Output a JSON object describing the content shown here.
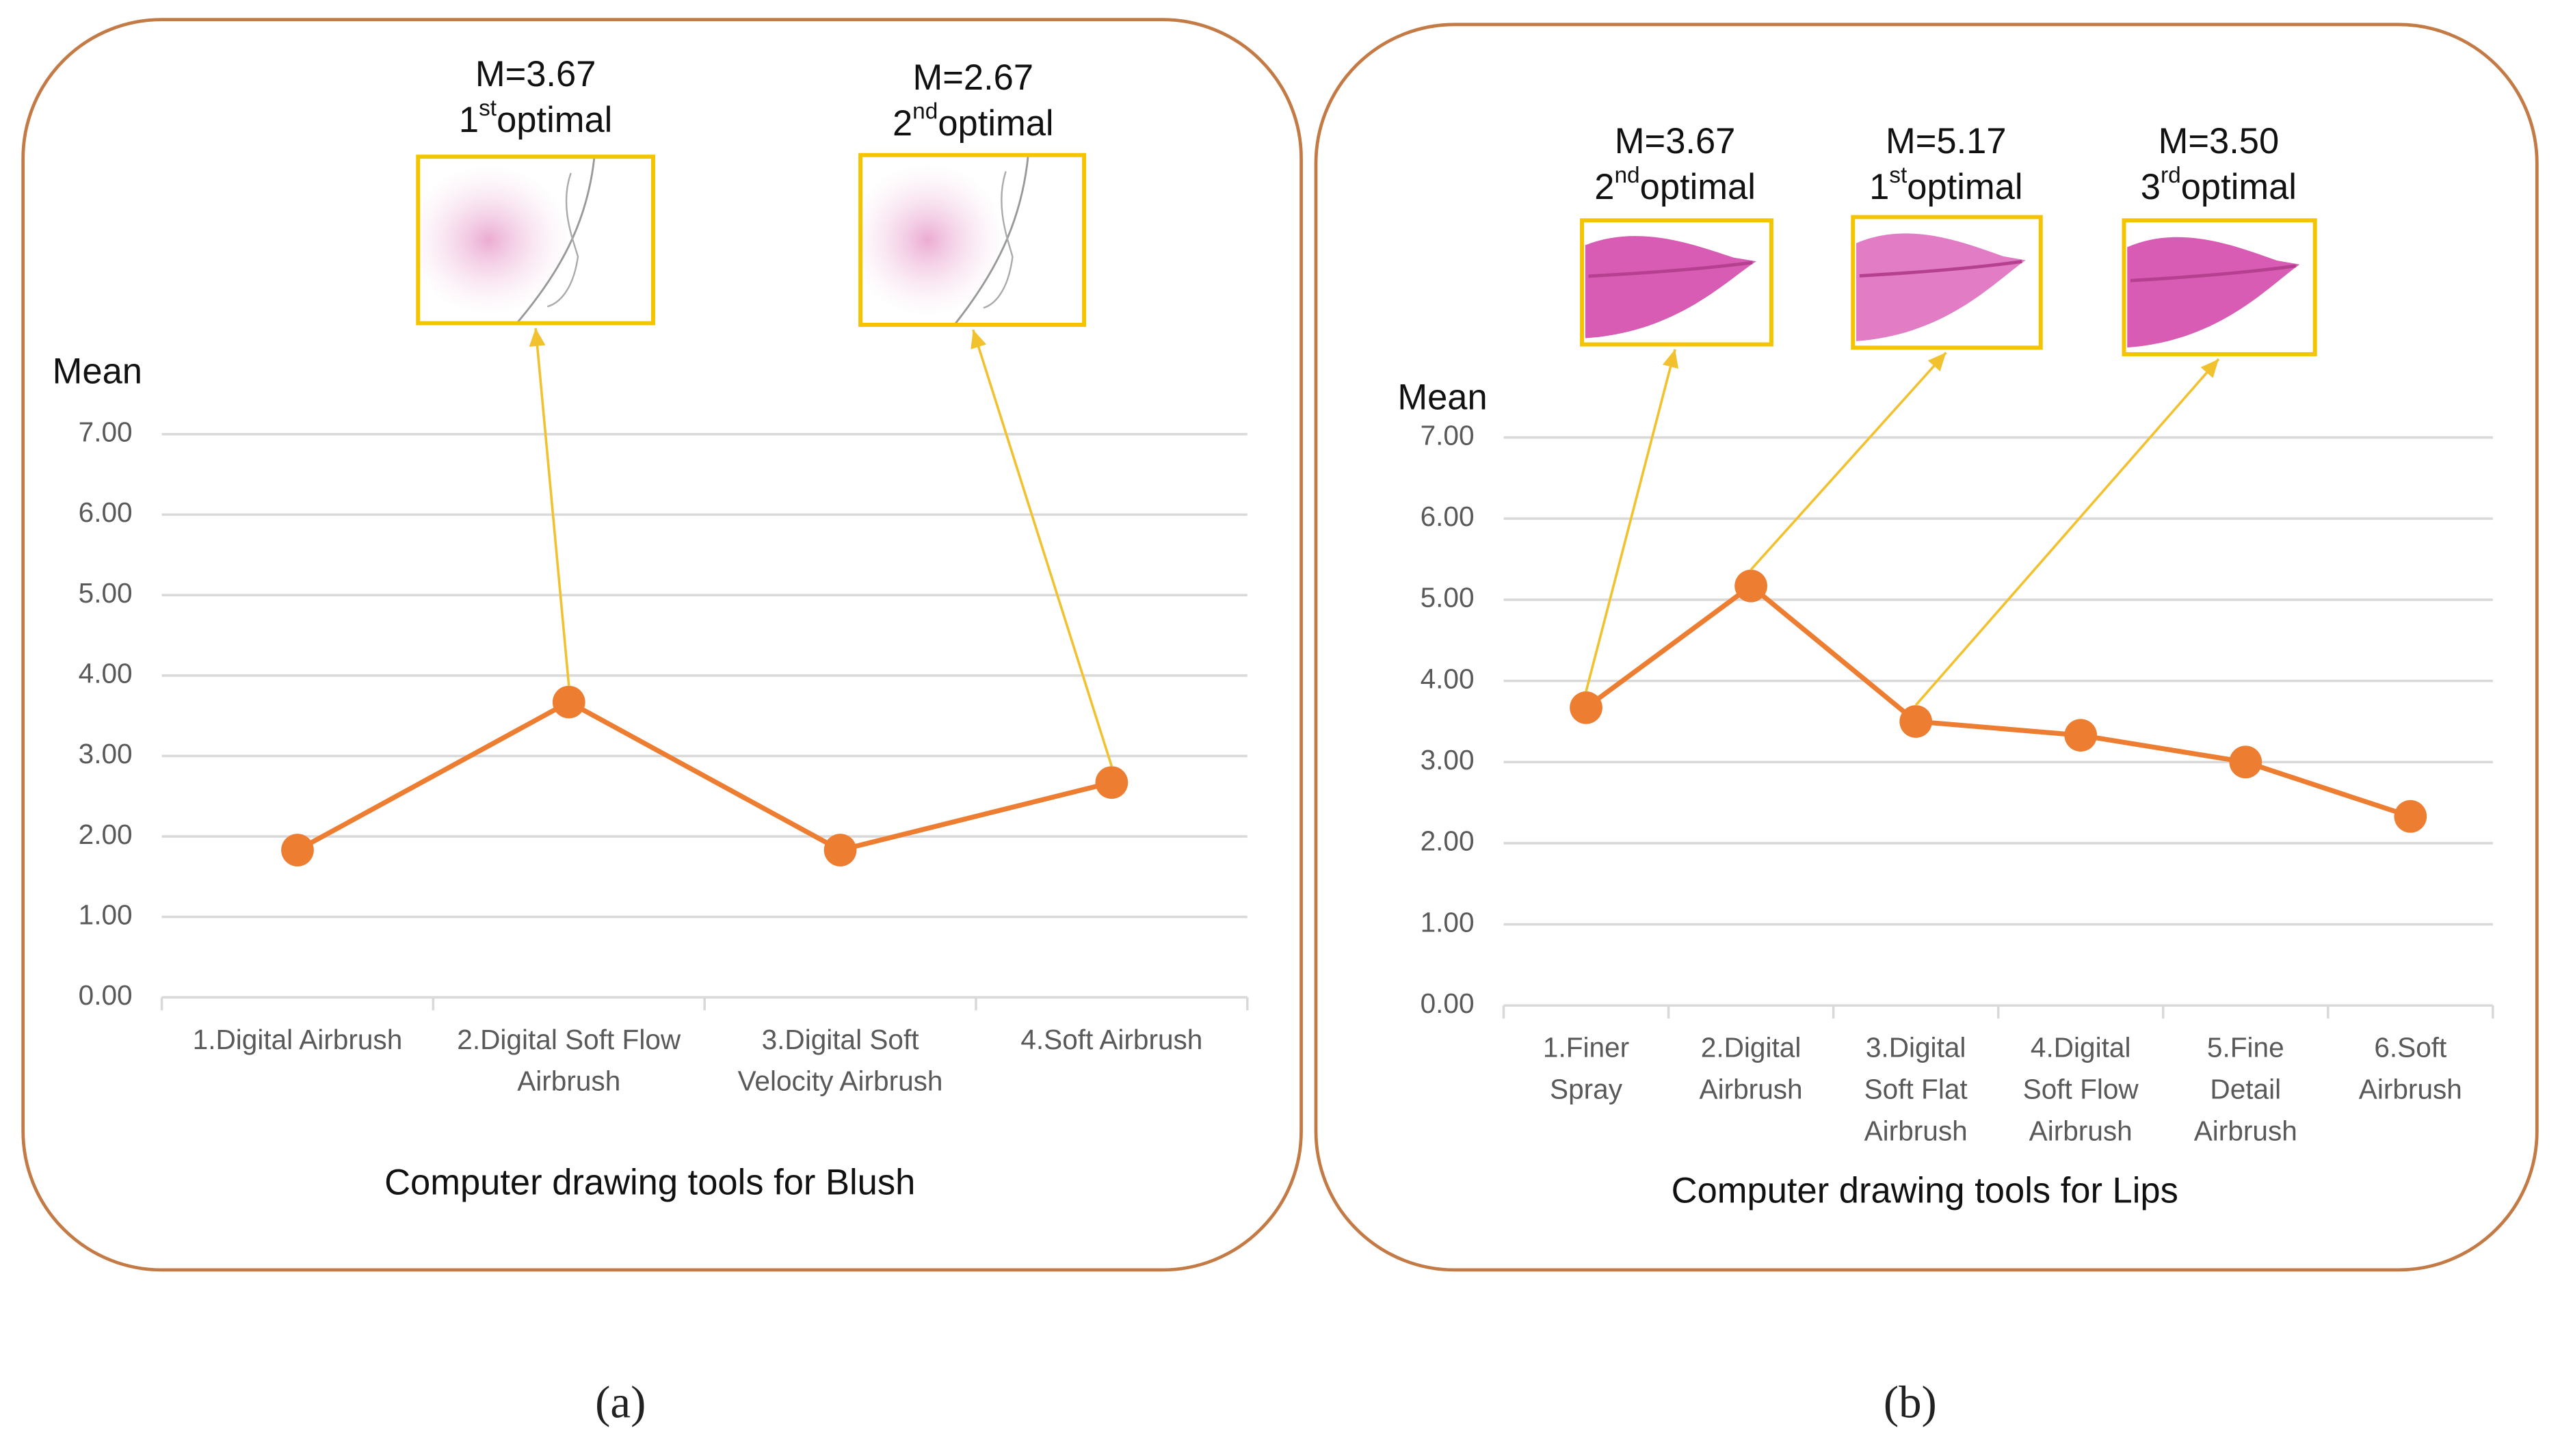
{
  "chart_data": [
    {
      "type": "line",
      "title": "Computer drawing tools for Blush",
      "y_label": "Mean",
      "panel_label": "(a)",
      "categories": [
        "1.Digital Airbrush",
        "2.Digital Soft Flow Airbrush",
        "3.Digital Soft Velocity Airbrush",
        "4.Soft Airbrush"
      ],
      "values": [
        1.83,
        3.67,
        1.83,
        2.67
      ],
      "color": "#ed7d31",
      "ylim": [
        0,
        7
      ],
      "yticks": [
        {
          "value": 0,
          "label": "0.00"
        },
        {
          "value": 1,
          "label": "1.00"
        },
        {
          "value": 2,
          "label": "2.00"
        },
        {
          "value": 3,
          "label": "3.00"
        },
        {
          "value": 4,
          "label": "4.00"
        },
        {
          "value": 5,
          "label": "5.00"
        },
        {
          "value": 6,
          "label": "6.00"
        },
        {
          "value": 7,
          "label": "7.00"
        }
      ],
      "grid": true,
      "annotations": [
        {
          "label": "M=3.67",
          "rank": "1",
          "suffix": "st",
          "text": "optimal"
        },
        {
          "label": "M=2.67",
          "rank": "2",
          "suffix": "nd",
          "text": "optimal"
        }
      ]
    },
    {
      "type": "line",
      "title": "Computer drawing tools for Lips",
      "y_label": "Mean",
      "panel_label": "(b)",
      "categories": [
        "1.Finer Spray",
        "2.Digital Airbrush",
        "3.Digital Soft Flat Airbrush",
        "4.Digital Soft Flow Airbrush",
        "5.Fine Detail Airbrush",
        "6.Soft Airbrush"
      ],
      "values": [
        3.67,
        5.17,
        3.5,
        3.33,
        3.0,
        2.33
      ],
      "color": "#ed7d31",
      "ylim": [
        0,
        7
      ],
      "yticks": [
        {
          "value": 0,
          "label": "0.00"
        },
        {
          "value": 1,
          "label": "1.00"
        },
        {
          "value": 2,
          "label": "2.00"
        },
        {
          "value": 3,
          "label": "3.00"
        },
        {
          "value": 4,
          "label": "4.00"
        },
        {
          "value": 5,
          "label": "5.00"
        },
        {
          "value": 6,
          "label": "6.00"
        },
        {
          "value": 7,
          "label": "7.00"
        }
      ],
      "grid": true,
      "annotations": [
        {
          "label": "M=3.67",
          "rank": "2",
          "suffix": "nd",
          "text": "optimal"
        },
        {
          "label": "M=5.17",
          "rank": "1",
          "suffix": "st",
          "text": "optimal"
        },
        {
          "label": "M=3.50",
          "rank": "3",
          "suffix": "rd",
          "text": "optimal"
        }
      ]
    }
  ]
}
